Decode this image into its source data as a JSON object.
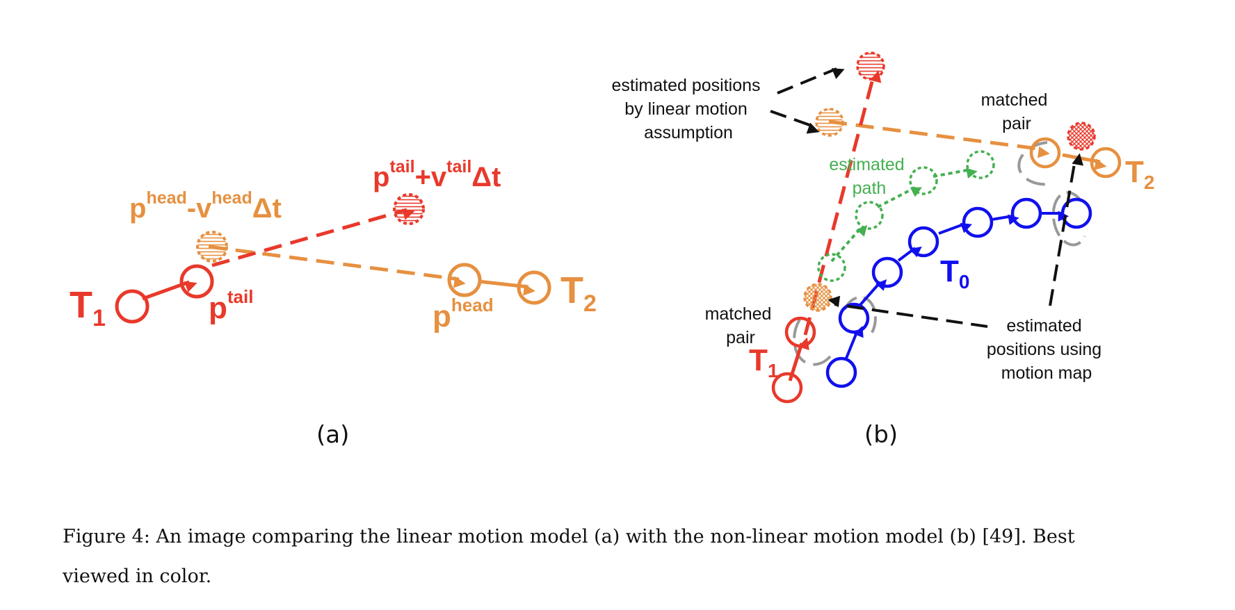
{
  "panel_a": {
    "label": "(a)",
    "t1": {
      "main": "T",
      "sub": "1"
    },
    "t2": {
      "main": "T",
      "sub": "2"
    },
    "p_tail": {
      "p": "p",
      "sup": "tail"
    },
    "p_head": {
      "p": "p",
      "sup": "head"
    },
    "tail_estimate": {
      "p": "p",
      "sup1": "tail",
      "plus_v": "+v",
      "sup2": "tail",
      "dt": "Δt"
    },
    "head_estimate": {
      "p": "p",
      "sup1": "head",
      "minus_v": "-v",
      "sup2": "head",
      "dt": "Δt"
    }
  },
  "panel_b": {
    "label": "(b)",
    "t0": {
      "main": "T",
      "sub": "0"
    },
    "t1": {
      "main": "T",
      "sub": "1"
    },
    "t2": {
      "main": "T",
      "sub": "2"
    },
    "linear_note": [
      "estimated positions",
      "by linear motion",
      "assumption"
    ],
    "motion_map_note": [
      "estimated",
      "positions using",
      "motion map"
    ],
    "matched_pair_top": [
      "matched",
      "pair"
    ],
    "matched_pair_bottom": [
      "matched",
      "pair"
    ],
    "estimated_path": [
      "estimated",
      "path"
    ]
  },
  "caption": {
    "line1": "Figure 4: An image comparing the linear motion model (a) with the non-linear motion model (b) [49]. Best",
    "line2": "viewed in color."
  },
  "colors": {
    "red": "#e8392b",
    "orange": "#e69040",
    "blue": "#1010ee",
    "green": "#44b050",
    "gray": "#999999",
    "black": "#111111"
  }
}
